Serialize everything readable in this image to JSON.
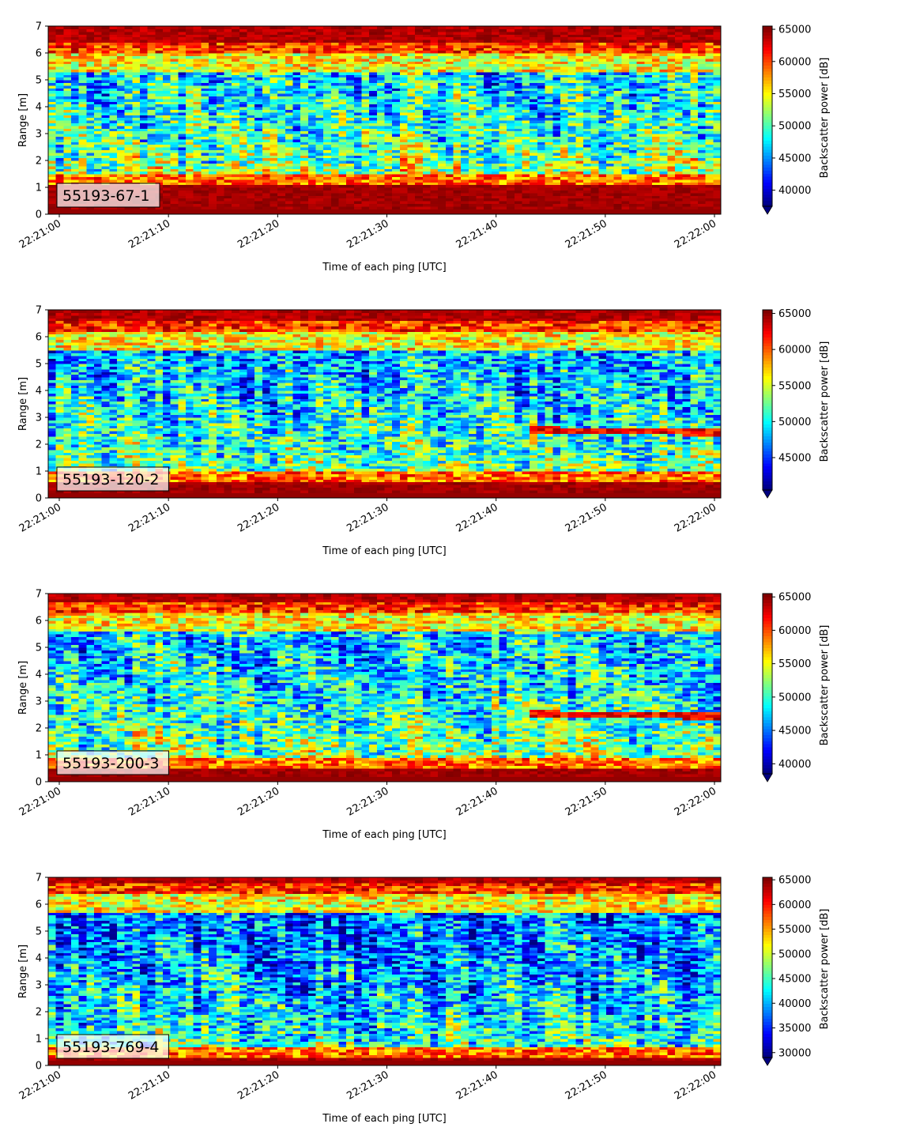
{
  "chart_data": [
    {
      "type": "heatmap",
      "label": "55193-67-1",
      "xlabel": "Time of each ping [UTC]",
      "ylabel": "Range [m]",
      "x_ticks": [
        "22:21:00",
        "22:21:10",
        "22:21:20",
        "22:21:30",
        "22:21:40",
        "22:21:50",
        "22:22:00"
      ],
      "ylim": [
        0,
        7
      ],
      "y_ticks": [
        0,
        1,
        2,
        3,
        4,
        5,
        6,
        7
      ],
      "colorbar": {
        "label": "Backscatter power [dB]",
        "ticks": [
          40000,
          45000,
          50000,
          55000,
          60000,
          65000
        ],
        "range": [
          37500,
          65500
        ],
        "colormap": "jet",
        "extend": "min"
      },
      "profile": {
        "bottom_band_top_m": 1.15,
        "surface_band_m": 6.0,
        "noise_mid": 0.35,
        "bright_layer": false
      }
    },
    {
      "type": "heatmap",
      "label": "55193-120-2",
      "xlabel": "Time of each ping [UTC]",
      "ylabel": "Range [m]",
      "x_ticks": [
        "22:21:00",
        "22:21:10",
        "22:21:20",
        "22:21:30",
        "22:21:40",
        "22:21:50",
        "22:22:00"
      ],
      "ylim": [
        0,
        7
      ],
      "y_ticks": [
        0,
        1,
        2,
        3,
        4,
        5,
        6,
        7
      ],
      "colorbar": {
        "label": "Backscatter power [dB]",
        "ticks": [
          45000,
          50000,
          55000,
          60000,
          65000
        ],
        "range": [
          40500,
          65500
        ],
        "colormap": "jet",
        "extend": "min"
      },
      "profile": {
        "bottom_band_top_m": 0.6,
        "surface_band_m": 6.2,
        "noise_mid": 0.3,
        "bright_layer": true
      }
    },
    {
      "type": "heatmap",
      "label": "55193-200-3",
      "xlabel": "Time of each ping [UTC]",
      "ylabel": "Range [m]",
      "x_ticks": [
        "22:21:00",
        "22:21:10",
        "22:21:20",
        "22:21:30",
        "22:21:40",
        "22:21:50",
        "22:22:00"
      ],
      "ylim": [
        0,
        7
      ],
      "y_ticks": [
        0,
        1,
        2,
        3,
        4,
        5,
        6,
        7
      ],
      "colorbar": {
        "label": "Backscatter power [dB]",
        "ticks": [
          40000,
          45000,
          50000,
          55000,
          60000,
          65000
        ],
        "range": [
          38500,
          65500
        ],
        "colormap": "jet",
        "extend": "min"
      },
      "profile": {
        "bottom_band_top_m": 0.5,
        "surface_band_m": 6.3,
        "noise_mid": 0.32,
        "bright_layer": true
      }
    },
    {
      "type": "heatmap",
      "label": "55193-769-4",
      "xlabel": "Time of each ping [UTC]",
      "ylabel": "Range [m]",
      "x_ticks": [
        "22:21:00",
        "22:21:10",
        "22:21:20",
        "22:21:30",
        "22:21:40",
        "22:21:50",
        "22:22:00"
      ],
      "ylim": [
        0,
        7
      ],
      "y_ticks": [
        0,
        1,
        2,
        3,
        4,
        5,
        6,
        7
      ],
      "colorbar": {
        "label": "Backscatter power [dB]",
        "ticks": [
          30000,
          35000,
          40000,
          45000,
          50000,
          55000,
          60000,
          65000
        ],
        "range": [
          29000,
          65500
        ],
        "colormap": "jet",
        "extend": "min"
      },
      "profile": {
        "bottom_band_top_m": 0.35,
        "surface_band_m": 6.4,
        "noise_mid": 0.22,
        "bright_layer": false
      }
    }
  ]
}
